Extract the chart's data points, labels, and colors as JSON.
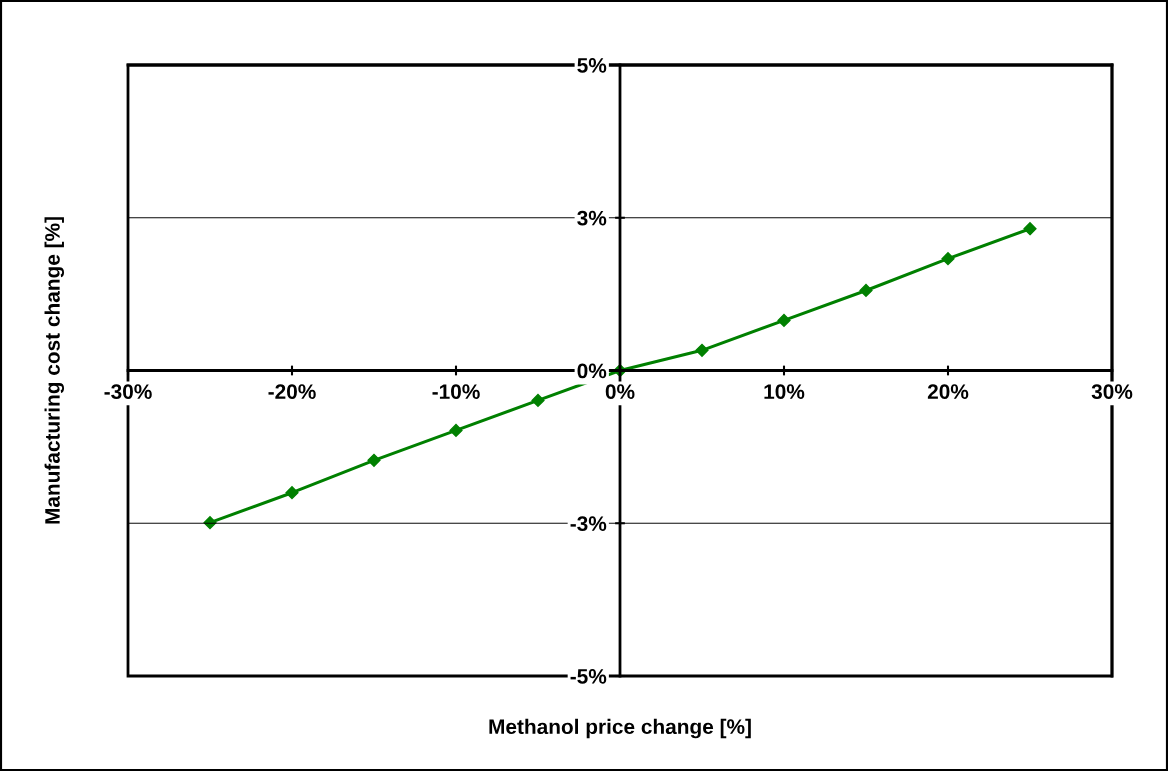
{
  "chart_data": {
    "type": "line",
    "xlabel": "Methanol price change [%]",
    "ylabel": "Manufacturing cost change [%]",
    "x": [
      -25,
      -20,
      -15,
      -10,
      -5,
      0,
      5,
      10,
      15,
      20,
      25
    ],
    "series": [
      {
        "color": "#008000",
        "values": [
          -2.49,
          -2.0,
          -1.47,
          -0.98,
          -0.49,
          0,
          0.33,
          0.82,
          1.31,
          1.83,
          2.32
        ]
      }
    ],
    "marker": "diamond",
    "line_style": "solid",
    "grid": "y",
    "xlim": [
      -30,
      30
    ],
    "ylim": [
      -5,
      5
    ],
    "xticks": [
      {
        "value": -30,
        "label": "-30%"
      },
      {
        "value": -20,
        "label": "-20%"
      },
      {
        "value": -10,
        "label": "-10%"
      },
      {
        "value": 0,
        "label": "0%"
      },
      {
        "value": 10,
        "label": "10%"
      },
      {
        "value": 20,
        "label": "20%"
      },
      {
        "value": 30,
        "label": "30%"
      }
    ],
    "yticks": [
      {
        "value": -5,
        "label": "-5%"
      },
      {
        "value": -2.5,
        "label": "-3%"
      },
      {
        "value": 0,
        "label": "0%"
      },
      {
        "value": 2.5,
        "label": "3%"
      },
      {
        "value": 5,
        "label": "5%"
      }
    ]
  }
}
